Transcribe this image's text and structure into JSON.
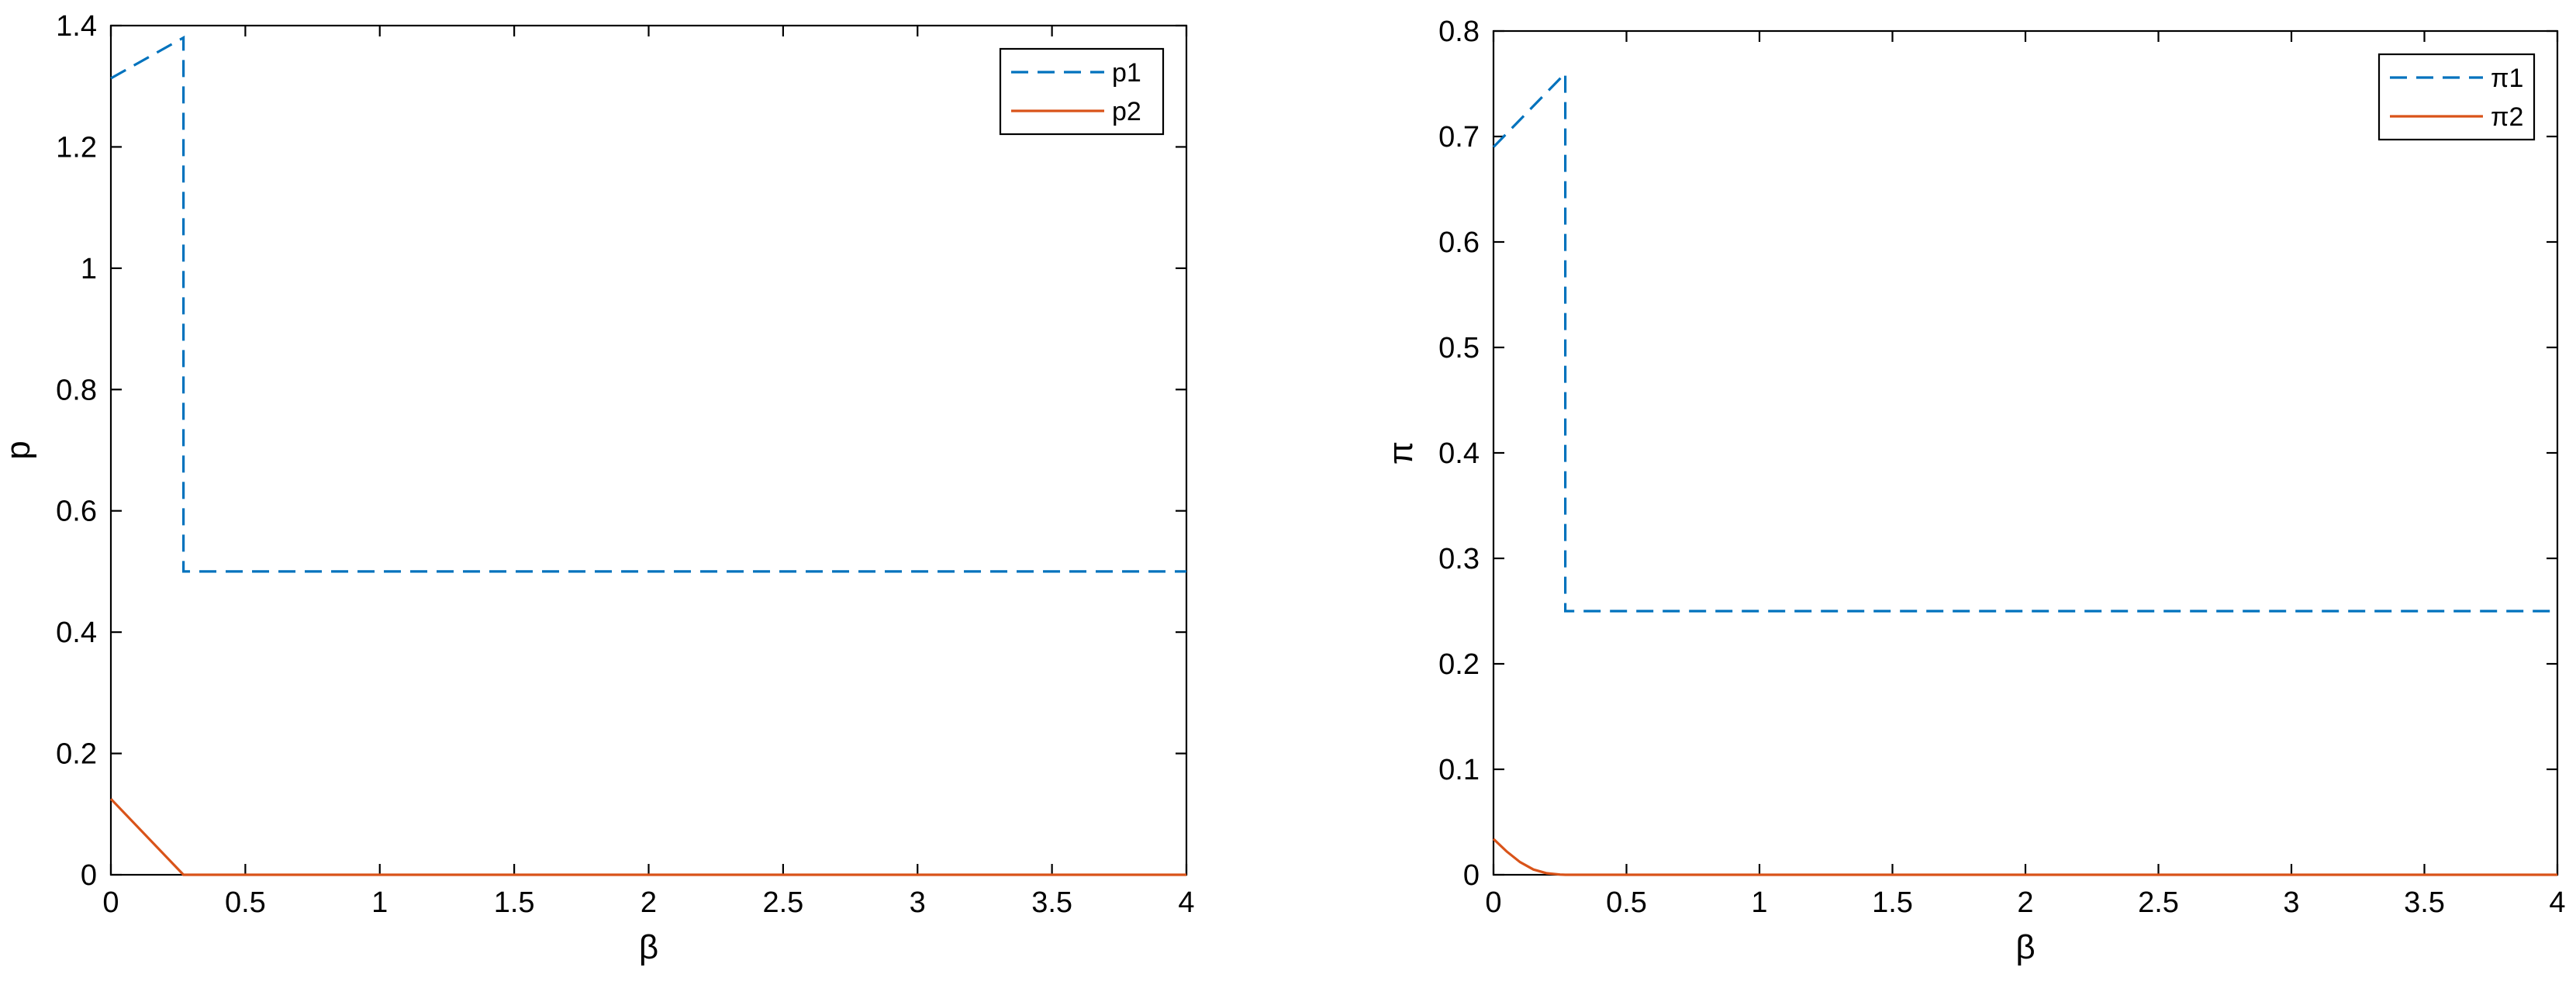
{
  "chart_data": [
    {
      "type": "line",
      "xlabel": "β",
      "ylabel": "p",
      "xlim": [
        0,
        4
      ],
      "ylim": [
        0,
        1.4
      ],
      "xticks": [
        "0",
        "0.5",
        "1",
        "1.5",
        "2",
        "2.5",
        "3",
        "3.5",
        "4"
      ],
      "xtick_values": [
        0,
        0.5,
        1,
        1.5,
        2,
        2.5,
        3,
        3.5,
        4
      ],
      "yticks": [
        "0",
        "0.2",
        "0.4",
        "0.6",
        "0.8",
        "1",
        "1.2",
        "1.4"
      ],
      "ytick_values": [
        0,
        0.2,
        0.4,
        0.6,
        0.8,
        1,
        1.2,
        1.4
      ],
      "grid": false,
      "legend": "top-right",
      "series": [
        {
          "name": "p1",
          "style": "dashed",
          "color": "#0072BD",
          "x": [
            0,
            0.27,
            0.27,
            4
          ],
          "y": [
            1.313,
            1.38,
            0.5,
            0.5
          ]
        },
        {
          "name": "p2",
          "style": "solid",
          "color": "#D95319",
          "x": [
            0,
            0.27,
            4
          ],
          "y": [
            0.125,
            0,
            0
          ]
        }
      ]
    },
    {
      "type": "line",
      "xlabel": "β",
      "ylabel": "π",
      "xlim": [
        0,
        4
      ],
      "ylim": [
        0,
        0.8
      ],
      "xticks": [
        "0",
        "0.5",
        "1",
        "1.5",
        "2",
        "2.5",
        "3",
        "3.5",
        "4"
      ],
      "xtick_values": [
        0,
        0.5,
        1,
        1.5,
        2,
        2.5,
        3,
        3.5,
        4
      ],
      "yticks": [
        "0",
        "0.1",
        "0.2",
        "0.3",
        "0.4",
        "0.5",
        "0.6",
        "0.7",
        "0.8"
      ],
      "ytick_values": [
        0,
        0.1,
        0.2,
        0.3,
        0.4,
        0.5,
        0.6,
        0.7,
        0.8
      ],
      "grid": false,
      "legend": "top-right",
      "series": [
        {
          "name": "π1",
          "style": "dashed",
          "color": "#0072BD",
          "x": [
            0,
            0.27,
            0.27,
            4
          ],
          "y": [
            0.69,
            0.76,
            0.25,
            0.25
          ]
        },
        {
          "name": "π2",
          "style": "solid",
          "color": "#D95319",
          "x": [
            0,
            0.05,
            0.1,
            0.15,
            0.2,
            0.25,
            0.27,
            4
          ],
          "y": [
            0.034,
            0.022,
            0.012,
            0.005,
            0.0015,
            0.0002,
            0,
            0
          ]
        }
      ]
    }
  ]
}
